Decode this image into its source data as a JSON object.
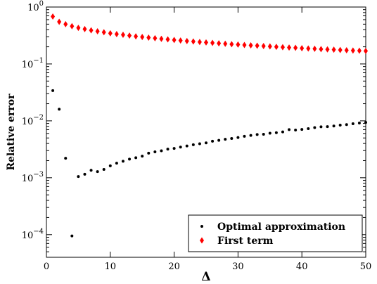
{
  "chart_data": {
    "type": "scatter",
    "title": "",
    "xlabel": "Δ",
    "ylabel": "Relative error",
    "xlim": [
      0,
      50
    ],
    "ylim": [
      4e-05,
      1
    ],
    "yscale": "log",
    "grid": false,
    "legend_position": "bottom-right",
    "x_ticks": [
      {
        "value": 0,
        "label": "0"
      },
      {
        "value": 10,
        "label": "10"
      },
      {
        "value": 20,
        "label": "20"
      },
      {
        "value": 30,
        "label": "30"
      },
      {
        "value": 40,
        "label": "40"
      },
      {
        "value": 50,
        "label": "50"
      }
    ],
    "y_ticks": [
      {
        "value": 1,
        "base": "10",
        "exp": "0"
      },
      {
        "value": 0.1,
        "base": "10",
        "exp": "−1"
      },
      {
        "value": 0.01,
        "base": "10",
        "exp": "−2"
      },
      {
        "value": 0.001,
        "base": "10",
        "exp": "−3"
      },
      {
        "value": 0.0001,
        "base": "10",
        "exp": "−4"
      }
    ],
    "series": [
      {
        "name": "Optimal approximation",
        "color": "#000000",
        "marker": "dot",
        "x": [
          1,
          2,
          3,
          4,
          5,
          6,
          7,
          8,
          9,
          10,
          11,
          12,
          13,
          14,
          15,
          16,
          17,
          18,
          19,
          20,
          21,
          22,
          23,
          24,
          25,
          26,
          27,
          28,
          29,
          30,
          31,
          32,
          33,
          34,
          35,
          36,
          37,
          38,
          39,
          40,
          41,
          42,
          43,
          44,
          45,
          46,
          47,
          48,
          49,
          50
        ],
        "y": [
          0.034,
          0.016,
          0.0022,
          9.5e-05,
          0.00105,
          0.00115,
          0.00135,
          0.00128,
          0.0014,
          0.00162,
          0.0018,
          0.00195,
          0.00212,
          0.00225,
          0.0024,
          0.0027,
          0.00285,
          0.00298,
          0.00318,
          0.00328,
          0.00345,
          0.00362,
          0.0038,
          0.00395,
          0.0041,
          0.00438,
          0.00455,
          0.00475,
          0.0049,
          0.0051,
          0.00535,
          0.00555,
          0.00575,
          0.0058,
          0.00605,
          0.0062,
          0.0064,
          0.007,
          0.0069,
          0.00705,
          0.0073,
          0.0076,
          0.00785,
          0.0079,
          0.0081,
          0.0084,
          0.0086,
          0.0089,
          0.00915,
          0.0094
        ]
      },
      {
        "name": "First term",
        "color": "#ff0000",
        "marker": "diamond",
        "x": [
          1,
          2,
          3,
          4,
          5,
          6,
          7,
          8,
          9,
          10,
          11,
          12,
          13,
          14,
          15,
          16,
          17,
          18,
          19,
          20,
          21,
          22,
          23,
          24,
          25,
          26,
          27,
          28,
          29,
          30,
          31,
          32,
          33,
          34,
          35,
          36,
          37,
          38,
          39,
          40,
          41,
          42,
          43,
          44,
          45,
          46,
          47,
          48,
          49,
          50
        ],
        "y": [
          0.68,
          0.55,
          0.5,
          0.46,
          0.43,
          0.41,
          0.39,
          0.375,
          0.36,
          0.345,
          0.335,
          0.325,
          0.315,
          0.305,
          0.297,
          0.29,
          0.283,
          0.276,
          0.27,
          0.264,
          0.258,
          0.253,
          0.248,
          0.243,
          0.239,
          0.234,
          0.23,
          0.226,
          0.222,
          0.219,
          0.215,
          0.212,
          0.209,
          0.206,
          0.203,
          0.2,
          0.197,
          0.194,
          0.192,
          0.189,
          0.187,
          0.185,
          0.182,
          0.18,
          0.178,
          0.176,
          0.174,
          0.172,
          0.171,
          0.169
        ]
      }
    ]
  }
}
